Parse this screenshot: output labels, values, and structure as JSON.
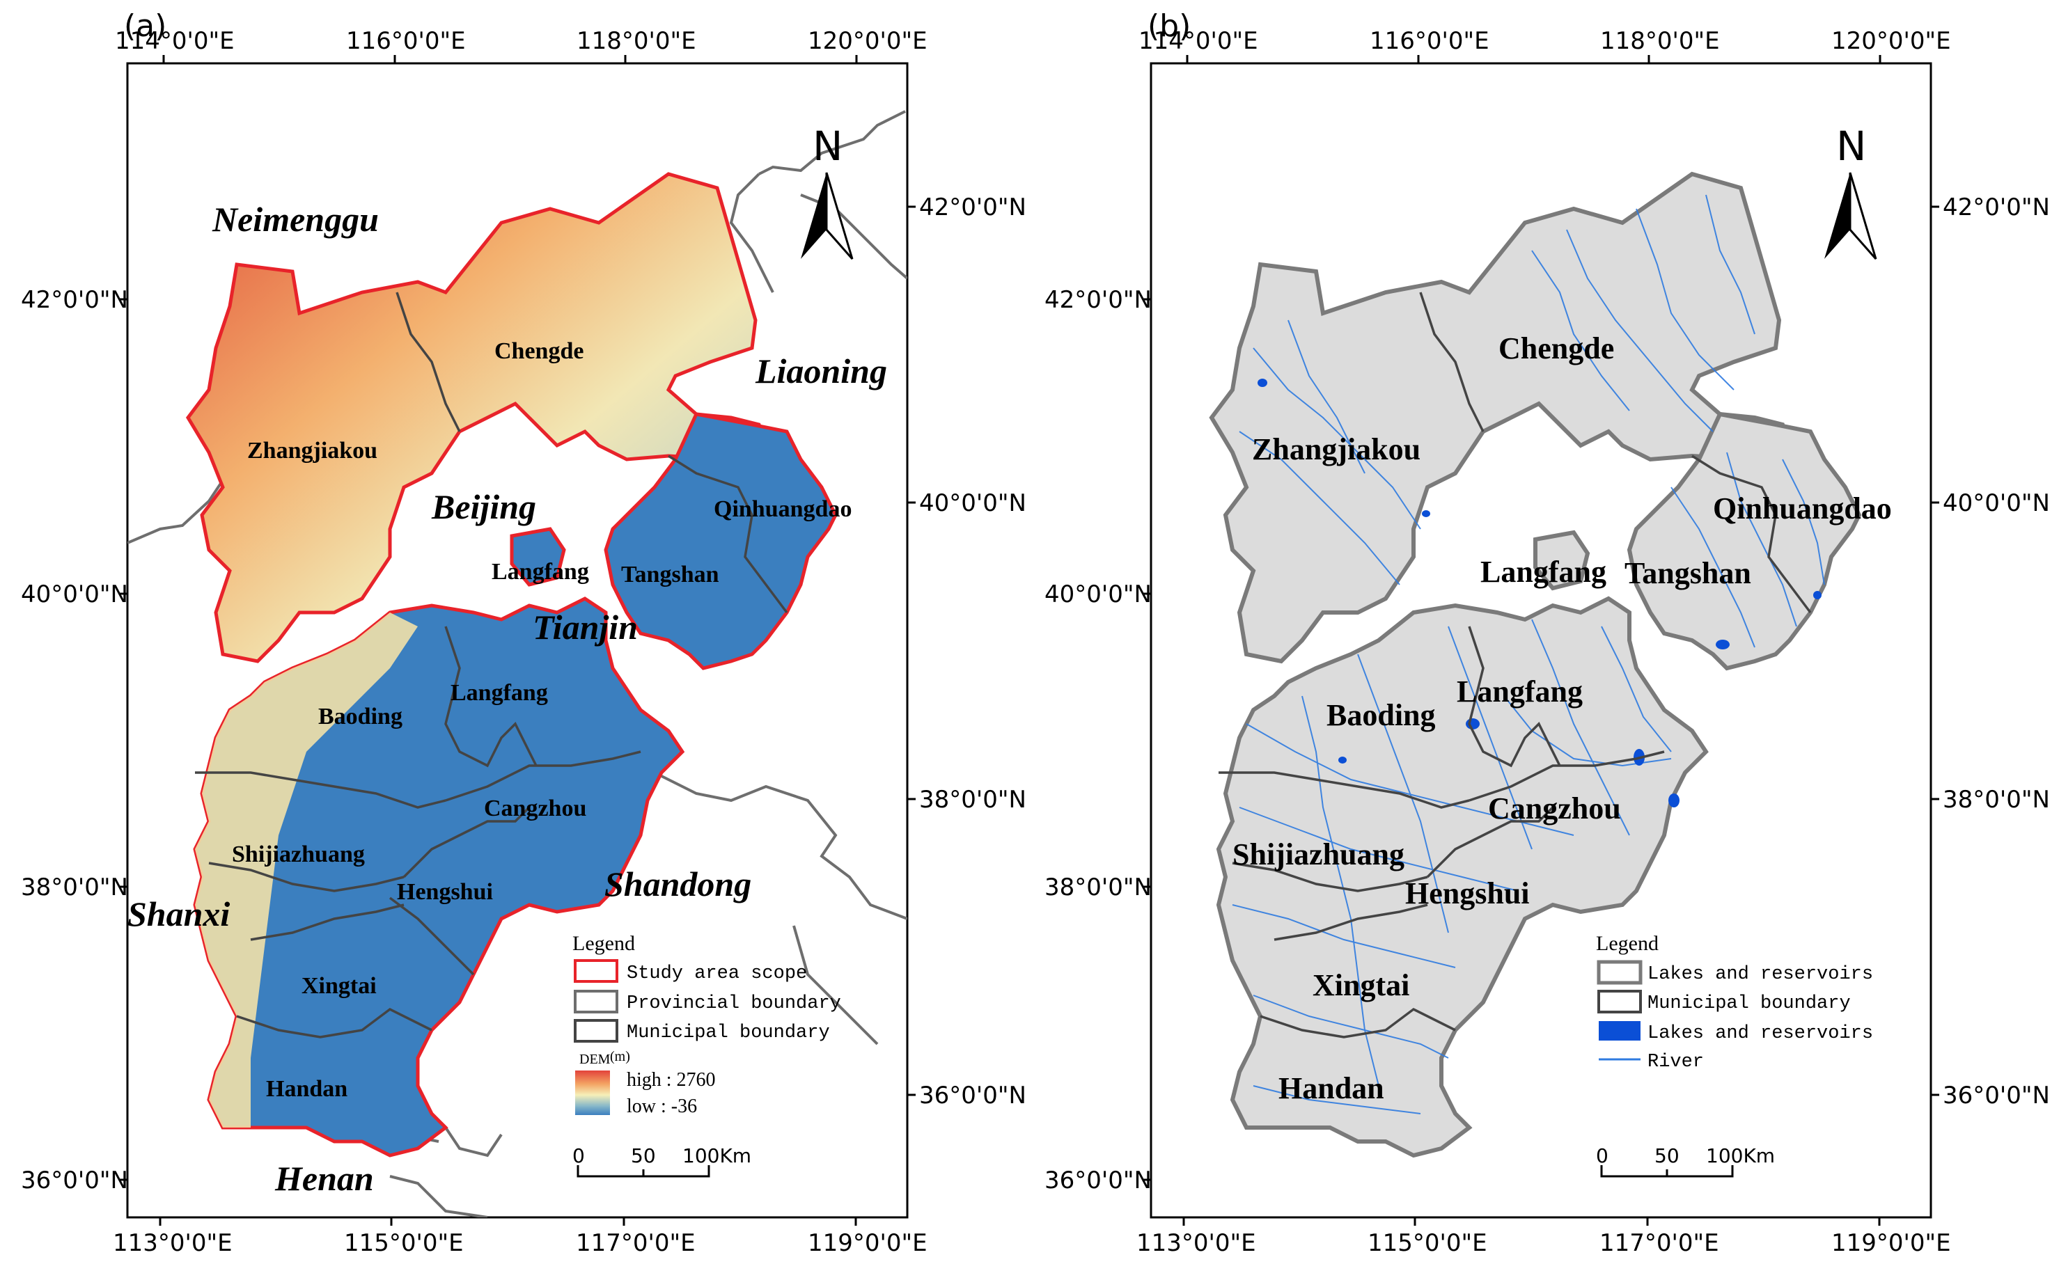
{
  "panels": [
    {
      "label": "(a)",
      "top_ticks": [
        "114°0'0\"E",
        "116°0'0\"E",
        "118°0'0\"E",
        "120°0'0\"E"
      ],
      "bottom_ticks": [
        "113°0'0\"E",
        "115°0'0\"E",
        "117°0'0\"E",
        "119°0'0\"E"
      ],
      "left_ticks": [
        "42°0'0\"N",
        "40°0'0\"N",
        "38°0'0\"N",
        "36°0'0\"N"
      ],
      "right_ticks": [
        "42°0'0\"N",
        "40°0'0\"N",
        "38°0'0\"N",
        "36°0'0\"N"
      ],
      "provinces": [
        "Neimenggu",
        "Liaoning",
        "Beijing",
        "Tianjin",
        "Shanxi",
        "Shandong",
        "Henan"
      ],
      "cities": [
        "Chengde",
        "Zhangjiakou",
        "Qinhuangdao",
        "Langfang",
        "Tangshan",
        "Langfang",
        "Baoding",
        "Cangzhou",
        "Shijiazhuang",
        "Hengshui",
        "Xingtai",
        "Handan"
      ],
      "north": "N",
      "legend": {
        "title": "Legend",
        "items": [
          "Study area scope",
          "Provincial boundary",
          "Municipal boundary"
        ],
        "dem_title": "DEM",
        "dem_unit": "(m)",
        "high": "high : 2760",
        "low": "low : -36"
      },
      "scale": {
        "ticks": [
          "0",
          "50",
          "100Km"
        ]
      }
    },
    {
      "label": "(b)",
      "top_ticks": [
        "114°0'0\"E",
        "116°0'0\"E",
        "118°0'0\"E",
        "120°0'0\"E"
      ],
      "bottom_ticks": [
        "113°0'0\"E",
        "115°0'0\"E",
        "117°0'0\"E",
        "119°0'0\"E"
      ],
      "left_ticks": [
        "42°0'0\"N",
        "40°0'0\"N",
        "38°0'0\"N",
        "36°0'0\"N"
      ],
      "right_ticks": [
        "42°0'0\"N",
        "40°0'0\"N",
        "38°0'0\"N",
        "36°0'0\"N"
      ],
      "cities": [
        "Chengde",
        "Zhangjiakou",
        "Qinhuangdao",
        "Langfang",
        "Tangshan",
        "Langfang",
        "Baoding",
        "Cangzhou",
        "Shijiazhuang",
        "Hengshui",
        "Xingtai",
        "Handan"
      ],
      "north": "N",
      "legend": {
        "title": "Legend",
        "items": [
          "Lakes and reservoirs",
          "Municipal boundary",
          "Lakes and reservoirs",
          "River"
        ]
      },
      "scale": {
        "ticks": [
          "0",
          "50",
          "100Km"
        ]
      }
    }
  ],
  "colors": {
    "study_area": "#e8232a",
    "provincial": "#6e6e6e",
    "municipal": "#444444",
    "lowland": "#3b7fbf",
    "upland": "#f0c37a",
    "highland": "#e2543a",
    "plain_gray": "#dcdcdc",
    "river": "#2f7be0",
    "lake": "#0b4fd6"
  }
}
